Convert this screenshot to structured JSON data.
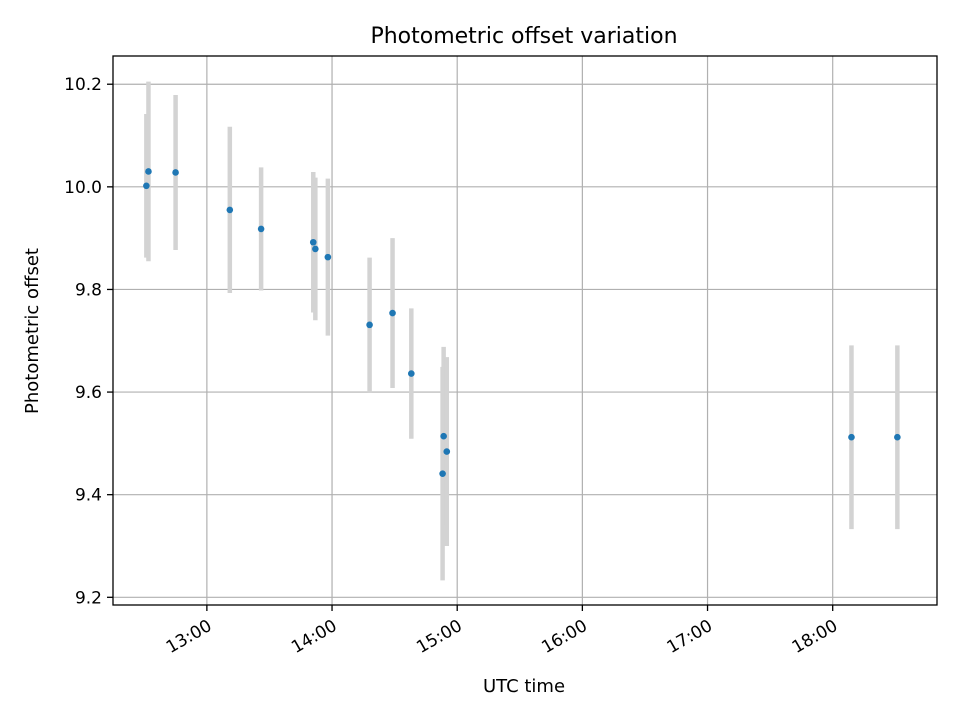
{
  "chart_data": {
    "type": "scatter",
    "title": "Photometric offset variation",
    "xlabel": "UTC time",
    "ylabel": "Photometric offset",
    "x_axis_type": "time",
    "xlim": [
      "12:15",
      "18:50"
    ],
    "ylim": [
      9.185,
      10.255
    ],
    "x_ticks": [
      "13:00",
      "14:00",
      "15:00",
      "16:00",
      "17:00",
      "18:00"
    ],
    "y_ticks": [
      9.2,
      9.4,
      9.6,
      9.8,
      10.0,
      10.2
    ],
    "y_tick_labels": [
      "9.2",
      "9.4",
      "9.6",
      "9.8",
      "10.0",
      "10.2"
    ],
    "grid": true,
    "marker_color": "#1f77b4",
    "errorbar_color": "#d3d3d3",
    "points": [
      {
        "t": "12:31",
        "y": 10.002,
        "lo": 9.862,
        "hi": 10.142
      },
      {
        "t": "12:32",
        "y": 10.03,
        "lo": 9.855,
        "hi": 10.205
      },
      {
        "t": "12:45",
        "y": 10.028,
        "lo": 9.877,
        "hi": 10.179
      },
      {
        "t": "13:11",
        "y": 9.955,
        "lo": 9.793,
        "hi": 10.117
      },
      {
        "t": "13:26",
        "y": 9.918,
        "lo": 9.798,
        "hi": 10.038
      },
      {
        "t": "13:51",
        "y": 9.892,
        "lo": 9.755,
        "hi": 10.029
      },
      {
        "t": "13:52",
        "y": 9.879,
        "lo": 9.74,
        "hi": 10.018
      },
      {
        "t": "13:58",
        "y": 9.863,
        "lo": 9.71,
        "hi": 10.016
      },
      {
        "t": "14:18",
        "y": 9.731,
        "lo": 9.6,
        "hi": 9.862
      },
      {
        "t": "14:29",
        "y": 9.754,
        "lo": 9.608,
        "hi": 9.9
      },
      {
        "t": "14:38",
        "y": 9.636,
        "lo": 9.509,
        "hi": 9.763
      },
      {
        "t": "14:53",
        "y": 9.441,
        "lo": 9.233,
        "hi": 9.649
      },
      {
        "t": "14:53.5",
        "y": 9.514,
        "lo": 9.34,
        "hi": 9.688
      },
      {
        "t": "14:55",
        "y": 9.484,
        "lo": 9.3,
        "hi": 9.668
      },
      {
        "t": "18:09",
        "y": 9.512,
        "lo": 9.333,
        "hi": 9.691
      },
      {
        "t": "18:31",
        "y": 9.512,
        "lo": 9.333,
        "hi": 9.691
      }
    ]
  }
}
